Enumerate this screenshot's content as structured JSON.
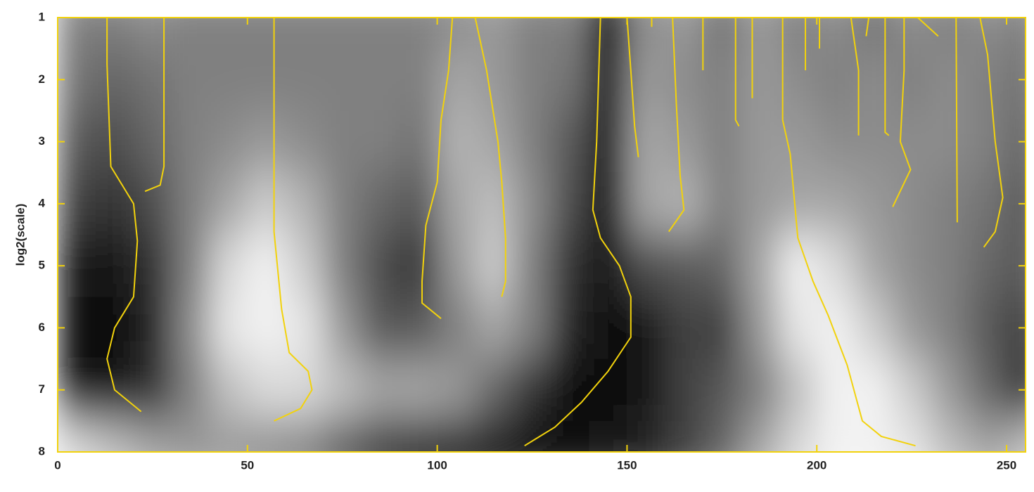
{
  "chart_data": {
    "type": "heatmap",
    "ylabel": "log2(scale)",
    "xlim": [
      0,
      255
    ],
    "ylim": [
      1,
      8
    ],
    "y_inverted": true,
    "xticks": [
      0,
      50,
      100,
      150,
      200,
      250
    ],
    "yticks": [
      1,
      2,
      3,
      4,
      5,
      6,
      7,
      8
    ],
    "axis_color": "#f2d20c",
    "colormap": [
      "#000000",
      "#ffffff"
    ],
    "zlim": [
      -1,
      1
    ],
    "x": [
      5,
      15,
      25,
      35,
      45,
      55,
      65,
      75,
      85,
      95,
      105,
      115,
      125,
      135,
      145,
      155,
      165,
      175,
      185,
      195,
      205,
      215,
      225,
      235,
      245,
      255
    ],
    "y": [
      1,
      2,
      3,
      4,
      5,
      6,
      7,
      8
    ],
    "z": [
      [
        0,
        0,
        0.1,
        0,
        0,
        0,
        0,
        0,
        0,
        0,
        0.1,
        0.2,
        0,
        0,
        -0.9,
        0.1,
        0.2,
        -0.1,
        0.2,
        0,
        0.1,
        -0.1,
        0.1,
        0,
        0.1,
        0
      ],
      [
        -0.1,
        -0.2,
        -0.1,
        0,
        0,
        0,
        0,
        0,
        0,
        0,
        0.3,
        0.2,
        0,
        -0.1,
        -0.8,
        0.2,
        0.1,
        0,
        0.2,
        0.1,
        0,
        0.1,
        0,
        0.1,
        0,
        -0.1
      ],
      [
        -0.3,
        -0.4,
        -0.2,
        0,
        0.1,
        0.2,
        0.1,
        0,
        0,
        -0.1,
        0.4,
        0.3,
        0,
        -0.3,
        -0.8,
        0.3,
        0.2,
        0,
        0.2,
        0.2,
        0.1,
        0.1,
        0.1,
        0.1,
        0,
        -0.2
      ],
      [
        -0.5,
        -0.6,
        -0.4,
        0,
        0.3,
        0.6,
        0.4,
        0,
        -0.2,
        -0.3,
        0.3,
        0.5,
        0.1,
        -0.4,
        -0.9,
        0.3,
        0.4,
        0,
        0.2,
        0.3,
        0.3,
        0.2,
        0.1,
        0,
        -0.1,
        -0.3
      ],
      [
        -0.8,
        -0.8,
        -0.6,
        0,
        0.7,
        0.9,
        0.6,
        0,
        -0.4,
        -0.6,
        0.2,
        0.6,
        0,
        -0.6,
        -0.8,
        -0.4,
        -0.3,
        -0.2,
        0.3,
        0.9,
        0.7,
        0.3,
        0.1,
        0,
        -0.2,
        -0.3
      ],
      [
        -0.9,
        -0.9,
        -0.7,
        0.1,
        0.8,
        0.9,
        0.8,
        0.2,
        -0.3,
        -0.3,
        0,
        0.3,
        0,
        -0.7,
        -0.9,
        -0.8,
        -0.5,
        -0.5,
        0.2,
        0.8,
        0.9,
        0.6,
        0.2,
        0,
        -0.3,
        -0.5
      ],
      [
        -0.8,
        -0.8,
        -0.6,
        0,
        0.5,
        0.7,
        0.7,
        0.5,
        0.3,
        0.3,
        0.2,
        -0.2,
        -0.6,
        -0.9,
        -0.9,
        -0.8,
        -0.5,
        -0.3,
        0,
        0.5,
        0.9,
        0.9,
        0.6,
        0.2,
        -0.2,
        -0.6
      ],
      [
        0.7,
        0.5,
        0.3,
        0.2,
        0.2,
        0.1,
        0,
        -0.3,
        -0.6,
        -0.8,
        -0.9,
        -0.9,
        -0.9,
        -0.9,
        -0.8,
        -0.7,
        -0.5,
        -0.2,
        0.3,
        0.7,
        0.9,
        0.9,
        0.8,
        0.5,
        0.3,
        0.5
      ]
    ],
    "lines_color": "#f2d20c",
    "lines": [
      {
        "x": [
          13,
          13,
          14,
          20,
          21,
          20,
          15,
          13,
          15,
          22
        ],
        "y": [
          1,
          1.75,
          3.4,
          4,
          4.6,
          5.5,
          6,
          6.5,
          7,
          7.35
        ]
      },
      {
        "x": [
          28,
          28,
          27,
          23
        ],
        "y": [
          1,
          3.4,
          3.7,
          3.8
        ]
      },
      {
        "x": [
          57,
          57,
          59,
          61,
          66,
          67,
          64,
          57
        ],
        "y": [
          1,
          4.45,
          5.7,
          6.4,
          6.7,
          7,
          7.3,
          7.5
        ]
      },
      {
        "x": [
          104,
          103,
          101,
          100,
          97,
          96,
          96,
          101
        ],
        "y": [
          1,
          1.85,
          2.65,
          3.65,
          4.35,
          5.25,
          5.6,
          5.85
        ]
      },
      {
        "x": [
          110,
          113,
          116,
          117,
          118,
          118,
          117
        ],
        "y": [
          1,
          1.85,
          3,
          3.65,
          4.55,
          5.25,
          5.5
        ]
      },
      {
        "x": [
          143,
          142,
          141,
          143,
          148,
          151,
          151,
          145,
          138,
          131,
          123
        ],
        "y": [
          1,
          3,
          4.1,
          4.55,
          5,
          5.5,
          6.15,
          6.7,
          7.2,
          7.6,
          7.9
        ]
      },
      {
        "x": [
          150,
          151,
          152,
          153
        ],
        "y": [
          1,
          1.85,
          2.75,
          3.25
        ]
      },
      {
        "x": [
          156.5,
          156.5
        ],
        "y": [
          1,
          1.15
        ]
      },
      {
        "x": [
          162,
          163,
          164,
          165,
          161
        ],
        "y": [
          1,
          2.4,
          3.55,
          4.1,
          4.45
        ]
      },
      {
        "x": [
          170,
          170
        ],
        "y": [
          1,
          1.85
        ]
      },
      {
        "x": [
          178.6,
          178.6,
          179.5
        ],
        "y": [
          1,
          2.65,
          2.75
        ]
      },
      {
        "x": [
          183,
          183,
          183
        ],
        "y": [
          1,
          1.85,
          2.3
        ]
      },
      {
        "x": [
          191,
          191,
          193,
          195,
          199,
          203,
          208,
          212,
          217,
          226
        ],
        "y": [
          1,
          2.65,
          3.2,
          4.55,
          5.25,
          5.8,
          6.6,
          7.5,
          7.75,
          7.9
        ]
      },
      {
        "x": [
          197,
          197
        ],
        "y": [
          1,
          1.85
        ]
      },
      {
        "x": [
          200.7,
          200.7
        ],
        "y": [
          1,
          1.5
        ]
      },
      {
        "x": [
          209,
          211,
          211
        ],
        "y": [
          1,
          1.85,
          2.9
        ]
      },
      {
        "x": [
          213.7,
          213
        ],
        "y": [
          1,
          1.3
        ]
      },
      {
        "x": [
          218,
          218,
          219
        ],
        "y": [
          1,
          2.85,
          2.9
        ]
      },
      {
        "x": [
          223,
          223,
          222,
          224.7,
          220
        ],
        "y": [
          1,
          1.85,
          3,
          3.45,
          4.05
        ]
      },
      {
        "x": [
          226.6,
          232
        ],
        "y": [
          1,
          1.3
        ]
      },
      {
        "x": [
          236.7,
          237
        ],
        "y": [
          1,
          4.3
        ]
      },
      {
        "x": [
          243,
          245,
          247,
          249,
          247,
          244
        ],
        "y": [
          1,
          1.6,
          3,
          3.9,
          4.45,
          4.7
        ]
      }
    ]
  }
}
